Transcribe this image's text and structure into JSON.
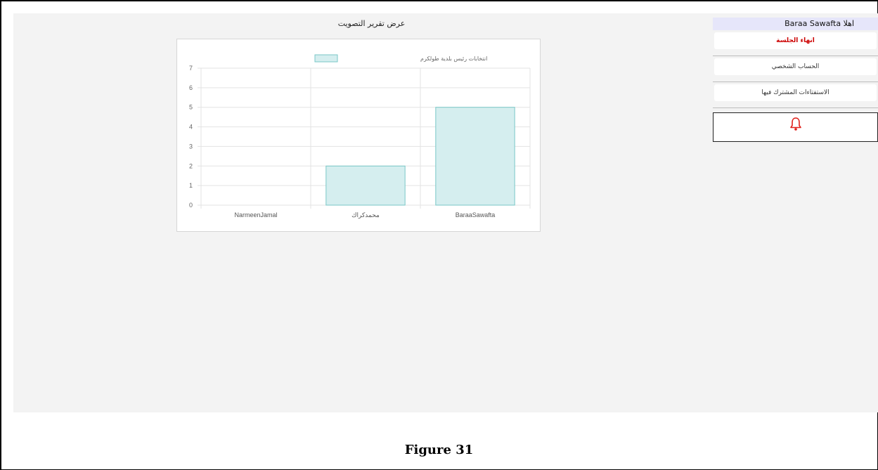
{
  "report": {
    "title": "عرض تقرير التصويت"
  },
  "sidebar": {
    "welcome": "اهلا Baraa Sawafta",
    "logout_label": "انهاء الجلسة",
    "profile_label": "الحساب الشخصي",
    "polls_label": "الاستفتاءات المشترك فيها"
  },
  "chart_data": {
    "type": "bar",
    "categories": [
      "NarmeenJamal",
      "محمدكراك",
      "BaraaSawafta"
    ],
    "series": [
      {
        "name": "انتخابات رئيس بلدية طولكرم",
        "values": [
          0,
          2,
          5
        ]
      }
    ],
    "ylim": [
      0,
      7
    ],
    "yticks": [
      0,
      1,
      2,
      3,
      4,
      5,
      6,
      7
    ],
    "grid": true,
    "legend": "top",
    "colors": {
      "fill": "#d5eeef",
      "stroke": "#79c7c7"
    }
  },
  "caption": "Figure 31"
}
